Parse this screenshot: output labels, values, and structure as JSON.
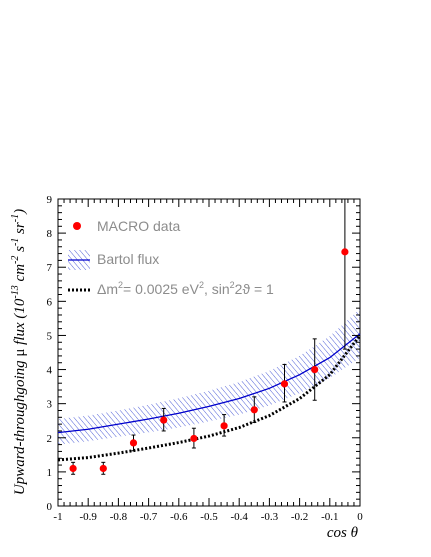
{
  "chart_data": {
    "type": "line",
    "xlabel": "cos θ",
    "ylabel_parts": [
      "Upward-throughgoing ",
      "μ",
      " flux (10",
      "-13",
      " cm",
      "-2",
      " s",
      "-1",
      " sr",
      "-1",
      ")"
    ],
    "xlim": [
      -1,
      0
    ],
    "ylim": [
      0,
      9
    ],
    "x_ticks": [
      -1,
      -0.9,
      -0.8,
      -0.7,
      -0.6,
      -0.5,
      -0.4,
      -0.3,
      -0.2,
      -0.1,
      0
    ],
    "x_tick_labels": [
      "-1",
      "-0.9",
      "-0.8",
      "-0.7",
      "-0.6",
      "-0.5",
      "-0.4",
      "-0.3",
      "-0.2",
      "-0.1",
      "0"
    ],
    "y_ticks": [
      0,
      1,
      2,
      3,
      4,
      5,
      6,
      7,
      8,
      9
    ],
    "y_tick_labels": [
      "0",
      "1",
      "2",
      "3",
      "4",
      "5",
      "6",
      "7",
      "8",
      "9"
    ],
    "legend": {
      "placement": "top-left",
      "data_label": "MACRO data",
      "band_label": "Bartol flux",
      "osc_label_parts": [
        "Δm",
        "2",
        "= 0.0025 eV",
        "2",
        ", sin",
        "2",
        "2ϑ = 1"
      ]
    },
    "series": [
      {
        "name": "MACRO data",
        "kind": "points",
        "color": "#ff0000",
        "x": [
          -0.95,
          -0.85,
          -0.75,
          -0.65,
          -0.55,
          -0.45,
          -0.35,
          -0.25,
          -0.15,
          -0.05
        ],
        "y": [
          1.1,
          1.1,
          1.85,
          2.52,
          1.98,
          2.35,
          2.82,
          3.58,
          4.0,
          7.45
        ],
        "y_low": [
          0.93,
          0.93,
          1.62,
          2.2,
          1.7,
          2.05,
          2.45,
          3.05,
          3.1,
          4.6
        ],
        "y_high": [
          1.28,
          1.28,
          2.08,
          2.86,
          2.28,
          2.68,
          3.2,
          4.15,
          4.9,
          9.0
        ]
      },
      {
        "name": "Bartol flux",
        "kind": "line",
        "color": "#0000cc",
        "x": [
          -1.0,
          -0.9,
          -0.8,
          -0.7,
          -0.6,
          -0.5,
          -0.4,
          -0.3,
          -0.2,
          -0.1,
          0.0
        ],
        "y": [
          2.15,
          2.25,
          2.4,
          2.55,
          2.72,
          2.92,
          3.15,
          3.45,
          3.85,
          4.35,
          5.05
        ],
        "band_low": [
          1.8,
          1.9,
          2.03,
          2.16,
          2.3,
          2.48,
          2.68,
          2.95,
          3.3,
          3.75,
          4.35
        ],
        "band_high": [
          2.55,
          2.65,
          2.8,
          2.97,
          3.16,
          3.38,
          3.63,
          3.96,
          4.4,
          4.98,
          5.78
        ],
        "band_color": "#5060d8"
      },
      {
        "name": "Δm² = 0.0025 eV², sin²2ϑ = 1",
        "kind": "dotted-line",
        "color": "#000000",
        "x": [
          -1.0,
          -0.9,
          -0.8,
          -0.7,
          -0.6,
          -0.5,
          -0.4,
          -0.3,
          -0.2,
          -0.1,
          0.0
        ],
        "y": [
          1.35,
          1.42,
          1.55,
          1.7,
          1.86,
          2.05,
          2.3,
          2.65,
          3.15,
          3.85,
          5.0
        ]
      }
    ]
  }
}
